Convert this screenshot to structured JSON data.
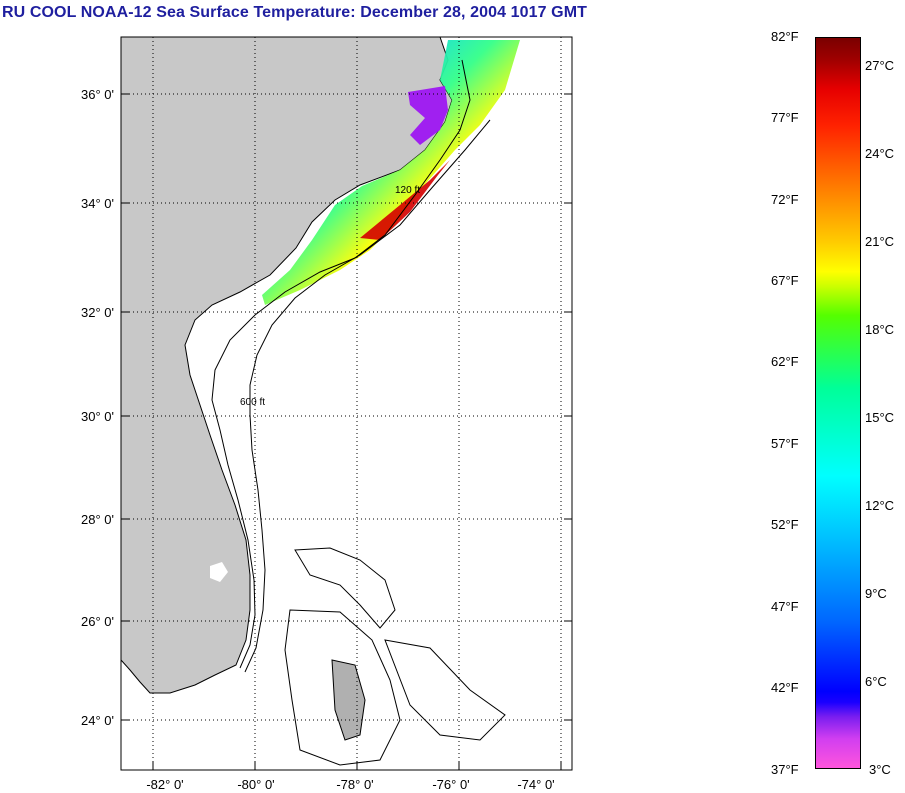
{
  "title": "RU COOL  NOAA-12  Sea Surface Temperature:  December 28, 2004 1017 GMT",
  "map": {
    "lon_labels": [
      "-82° 0'",
      "-80° 0'",
      "-78° 0'",
      "-76° 0'",
      "-74° 0'"
    ],
    "lat_labels": [
      "36° 0'",
      "34° 0'",
      "32° 0'",
      "30° 0'",
      "28° 0'",
      "26° 0'",
      "24° 0'"
    ],
    "colors": {
      "land": "#c8c8c8",
      "ocean": "#ffffff",
      "contour": "#000000",
      "grid": "#000000"
    },
    "contour_labels": [
      "120 ft",
      "600 ft"
    ]
  },
  "colorbar": {
    "fahrenheit_labels": [
      "82°F",
      "77°F",
      "72°F",
      "67°F",
      "62°F",
      "57°F",
      "52°F",
      "47°F",
      "42°F",
      "37°F"
    ],
    "celsius_labels": [
      "27°C",
      "24°C",
      "21°C",
      "18°C",
      "15°C",
      "12°C",
      "9°C",
      "6°C",
      "3°C"
    ]
  }
}
